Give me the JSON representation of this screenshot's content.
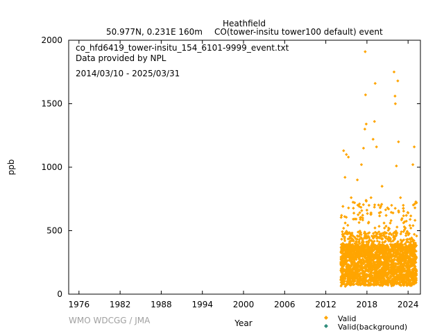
{
  "header": {
    "station": "Heathfield",
    "location": "50.977N, 0.231E 160m",
    "species": "CO(tower-insitu tower100 default) event"
  },
  "info": {
    "filename": "co_hfd6419_tower-insitu_154_6101-9999_event.txt",
    "provider": "Data provided by NPL",
    "period": "2014/03/10 - 2025/03/31"
  },
  "credit": "WMO WDCGG / JMA",
  "chart_data": {
    "type": "scatter",
    "title": "Heathfield",
    "xlabel": "Year",
    "ylabel": "ppb",
    "xlim": [
      1974.5,
      2025.8
    ],
    "ylim": [
      0,
      2000
    ],
    "xticks": [
      1976,
      1982,
      1988,
      1994,
      2000,
      2006,
      2012,
      2018,
      2024
    ],
    "yticks": [
      0,
      500,
      1000,
      1500,
      2000
    ],
    "grid": false,
    "legend_position": "bottom-right",
    "series": [
      {
        "name": "Valid",
        "color": "#ffa500",
        "data_start": 2014.19,
        "data_end": 2025.25,
        "typical_range": [
          80,
          400
        ],
        "outliers": [
          [
            2014.3,
            620
          ],
          [
            2014.6,
            1130
          ],
          [
            2014.8,
            920
          ],
          [
            2015.0,
            1100
          ],
          [
            2015.3,
            1080
          ],
          [
            2015.7,
            760
          ],
          [
            2016.2,
            720
          ],
          [
            2016.6,
            900
          ],
          [
            2016.9,
            690
          ],
          [
            2017.2,
            1020
          ],
          [
            2017.5,
            1150
          ],
          [
            2017.7,
            1300
          ],
          [
            2017.75,
            1910
          ],
          [
            2017.8,
            1570
          ],
          [
            2017.9,
            1340
          ],
          [
            2018.3,
            700
          ],
          [
            2018.6,
            760
          ],
          [
            2018.9,
            1220
          ],
          [
            2019.1,
            1360
          ],
          [
            2019.2,
            1660
          ],
          [
            2019.4,
            1160
          ],
          [
            2019.8,
            640
          ],
          [
            2020.2,
            850
          ],
          [
            2020.5,
            560
          ],
          [
            2020.8,
            620
          ],
          [
            2021.0,
            680
          ],
          [
            2021.4,
            560
          ],
          [
            2021.6,
            700
          ],
          [
            2021.8,
            640
          ],
          [
            2021.95,
            1750
          ],
          [
            2022.1,
            1560
          ],
          [
            2022.15,
            1500
          ],
          [
            2022.3,
            1010
          ],
          [
            2022.5,
            1680
          ],
          [
            2022.6,
            1200
          ],
          [
            2022.9,
            760
          ],
          [
            2023.3,
            700
          ],
          [
            2023.6,
            520
          ],
          [
            2024.0,
            640
          ],
          [
            2024.4,
            520
          ],
          [
            2024.7,
            1020
          ],
          [
            2024.9,
            1160
          ],
          [
            2025.0,
            680
          ]
        ]
      },
      {
        "name": "Valid(background)",
        "color": "#2e8b7a",
        "data_start": null,
        "data_end": null,
        "typical_range": null,
        "outliers": []
      }
    ]
  }
}
